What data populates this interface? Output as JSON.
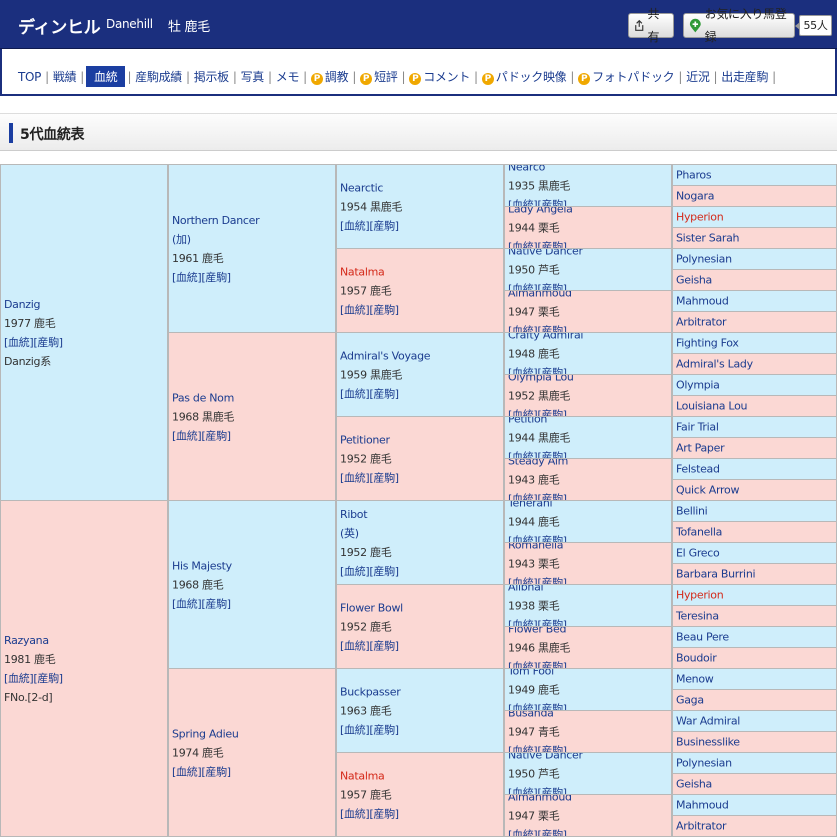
{
  "header": {
    "title": "ディンヒル",
    "en_name": "Danehill",
    "sex_color": "牡 鹿毛",
    "share_label": "共有",
    "fav_label": "お気に入り馬登録",
    "fav_count": "55人"
  },
  "nav": {
    "items": [
      {
        "label": "TOP",
        "p": false,
        "active": false
      },
      {
        "label": "戦績",
        "p": false,
        "active": false
      },
      {
        "label": "血統",
        "p": false,
        "active": true
      },
      {
        "label": "産駒成績",
        "p": false,
        "active": false
      },
      {
        "label": "掲示板",
        "p": false,
        "active": false
      },
      {
        "label": "写真",
        "p": false,
        "active": false
      },
      {
        "label": "メモ",
        "p": false,
        "active": false
      },
      {
        "label": "調教",
        "p": true,
        "active": false
      },
      {
        "label": "短評",
        "p": true,
        "active": false
      },
      {
        "label": "コメント",
        "p": true,
        "active": false
      },
      {
        "label": "パドック映像",
        "p": true,
        "active": false
      },
      {
        "label": "フォトパドック",
        "p": true,
        "active": false
      },
      {
        "label": "近況",
        "p": false,
        "active": false
      },
      {
        "label": "出走産駒",
        "p": false,
        "active": false
      }
    ]
  },
  "section": {
    "title": "5代血統表"
  },
  "links": {
    "pedigree": "[血統]",
    "progeny": "[産駒]"
  },
  "pedigree": {
    "g1": [
      {
        "name": "Danzig",
        "year": "1977 鹿毛",
        "extra": "Danzig系",
        "sex": "m"
      },
      {
        "name": "Razyana",
        "year": "1981 鹿毛",
        "extra": "FNo.[2-d]",
        "sex": "f"
      }
    ],
    "g2": [
      {
        "name": "Northern Dancer",
        "origin": "(加)",
        "year": "1961 鹿毛",
        "sex": "m"
      },
      {
        "name": "Pas de Nom",
        "year": "1968 黒鹿毛",
        "sex": "f"
      },
      {
        "name": "His Majesty",
        "year": "1968 鹿毛",
        "sex": "m"
      },
      {
        "name": "Spring Adieu",
        "year": "1974 鹿毛",
        "sex": "f"
      }
    ],
    "g3": [
      {
        "name": "Nearctic",
        "year": "1954 黒鹿毛",
        "sex": "m"
      },
      {
        "name": "Natalma",
        "year": "1957 鹿毛",
        "sex": "f",
        "red": true
      },
      {
        "name": "Admiral's Voyage",
        "year": "1959 黒鹿毛",
        "sex": "m"
      },
      {
        "name": "Petitioner",
        "year": "1952 鹿毛",
        "sex": "f"
      },
      {
        "name": "Ribot",
        "origin": "(英)",
        "year": "1952 鹿毛",
        "sex": "m"
      },
      {
        "name": "Flower Bowl",
        "year": "1952 鹿毛",
        "sex": "f"
      },
      {
        "name": "Buckpasser",
        "year": "1963 鹿毛",
        "sex": "m"
      },
      {
        "name": "Natalma",
        "year": "1957 鹿毛",
        "sex": "f",
        "red": true
      }
    ],
    "g4": [
      {
        "name": "Nearco",
        "year": "1935 黒鹿毛",
        "sex": "m"
      },
      {
        "name": "Lady Angela",
        "year": "1944 栗毛",
        "sex": "f"
      },
      {
        "name": "Native Dancer",
        "year": "1950 芦毛",
        "sex": "m"
      },
      {
        "name": "Almahmoud",
        "year": "1947 栗毛",
        "sex": "f"
      },
      {
        "name": "Crafty Admiral",
        "year": "1948 鹿毛",
        "sex": "m"
      },
      {
        "name": "Olympia Lou",
        "year": "1952 黒鹿毛",
        "sex": "f"
      },
      {
        "name": "Petition",
        "year": "1944 黒鹿毛",
        "sex": "m"
      },
      {
        "name": "Steady Aim",
        "year": "1943 鹿毛",
        "sex": "f"
      },
      {
        "name": "Tenerani",
        "year": "1944 鹿毛",
        "sex": "m"
      },
      {
        "name": "Romanella",
        "year": "1943 栗毛",
        "sex": "f"
      },
      {
        "name": "Alibhai",
        "year": "1938 栗毛",
        "sex": "m"
      },
      {
        "name": "Flower Bed",
        "year": "1946 黒鹿毛",
        "sex": "f"
      },
      {
        "name": "Tom Fool",
        "year": "1949 鹿毛",
        "sex": "m"
      },
      {
        "name": "Busanda",
        "year": "1947 青毛",
        "sex": "f"
      },
      {
        "name": "Native Dancer",
        "year": "1950 芦毛",
        "sex": "m"
      },
      {
        "name": "Almahmoud",
        "year": "1947 栗毛",
        "sex": "f"
      }
    ],
    "g5": [
      {
        "name": "Pharos",
        "sex": "m"
      },
      {
        "name": "Nogara",
        "sex": "f"
      },
      {
        "name": "Hyperion",
        "sex": "m",
        "red": true
      },
      {
        "name": "Sister Sarah",
        "sex": "f"
      },
      {
        "name": "Polynesian",
        "sex": "m"
      },
      {
        "name": "Geisha",
        "sex": "f"
      },
      {
        "name": "Mahmoud",
        "sex": "m"
      },
      {
        "name": "Arbitrator",
        "sex": "f"
      },
      {
        "name": "Fighting Fox",
        "sex": "m"
      },
      {
        "name": "Admiral's Lady",
        "sex": "f"
      },
      {
        "name": "Olympia",
        "sex": "m"
      },
      {
        "name": "Louisiana Lou",
        "sex": "f"
      },
      {
        "name": "Fair Trial",
        "sex": "m"
      },
      {
        "name": "Art Paper",
        "sex": "f"
      },
      {
        "name": "Felstead",
        "sex": "m"
      },
      {
        "name": "Quick Arrow",
        "sex": "f"
      },
      {
        "name": "Bellini",
        "sex": "m"
      },
      {
        "name": "Tofanella",
        "sex": "f"
      },
      {
        "name": "El Greco",
        "sex": "m"
      },
      {
        "name": "Barbara Burrini",
        "sex": "f"
      },
      {
        "name": "Hyperion",
        "sex": "m",
        "red": true
      },
      {
        "name": "Teresina",
        "sex": "f"
      },
      {
        "name": "Beau Pere",
        "sex": "m"
      },
      {
        "name": "Boudoir",
        "sex": "f"
      },
      {
        "name": "Menow",
        "sex": "m"
      },
      {
        "name": "Gaga",
        "sex": "f"
      },
      {
        "name": "War Admiral",
        "sex": "m"
      },
      {
        "name": "Businesslike",
        "sex": "f"
      },
      {
        "name": "Polynesian",
        "sex": "m"
      },
      {
        "name": "Geisha",
        "sex": "f"
      },
      {
        "name": "Mahmoud",
        "sex": "m"
      },
      {
        "name": "Arbitrator",
        "sex": "f"
      }
    ]
  }
}
